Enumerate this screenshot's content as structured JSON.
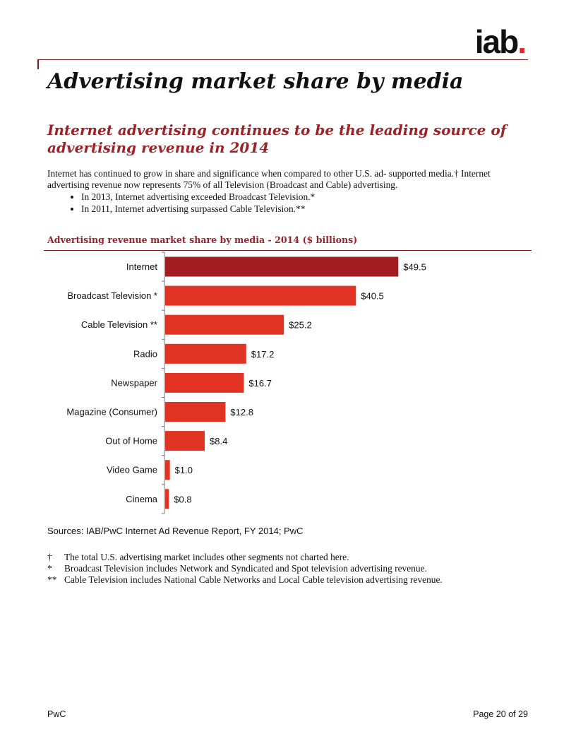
{
  "logo": {
    "text": "iab",
    "dot": "."
  },
  "page_title": "Advertising market share by media",
  "section_heading": "Internet advertising continues to be the leading source of advertising revenue in 2014",
  "intro": {
    "paragraph": "Internet has continued to grow in share and significance when compared to other U.S. ad- supported media.† Internet advertising revenue now represents 75% of all Television (Broadcast and Cable) advertising.",
    "bullets": [
      "In 2013, Internet advertising exceeded Broadcast Television.*",
      "In 2011, Internet advertising surpassed Cable Television.**"
    ]
  },
  "chart_title": "Advertising revenue market share by media - 2014 ($ billions)",
  "chart_data": {
    "type": "bar",
    "orientation": "horizontal",
    "categories": [
      "Internet",
      "Broadcast Television *",
      "Cable Television **",
      "Radio",
      "Newspaper",
      "Magazine (Consumer)",
      "Out of Home",
      "Video Game",
      "Cinema"
    ],
    "values": [
      49.5,
      40.5,
      25.2,
      17.2,
      16.7,
      12.8,
      8.4,
      1.0,
      0.8
    ],
    "value_labels": [
      "$49.5",
      "$40.5",
      "$25.2",
      "$17.2",
      "$16.7",
      "$12.8",
      "$8.4",
      "$1.0",
      "$0.8"
    ],
    "highlight_category": "Internet",
    "colors": {
      "highlight": "#a01e22",
      "default": "#e03324"
    },
    "xlim": [
      0,
      55
    ],
    "title": "",
    "xlabel": "",
    "ylabel": ""
  },
  "sources": "Sources: IAB/PwC Internet Ad Revenue Report, FY 2014; PwC",
  "footnotes": [
    {
      "mark": "†",
      "text": "The total U.S. advertising market includes other segments not charted here."
    },
    {
      "mark": "*",
      "text": "Broadcast Television includes Network and Syndicated and Spot television advertising revenue."
    },
    {
      "mark": "**",
      "text": "Cable Television includes National Cable Networks and Local Cable television advertising revenue."
    }
  ],
  "footer": {
    "left": "PwC",
    "right": "Page 20 of 29"
  }
}
